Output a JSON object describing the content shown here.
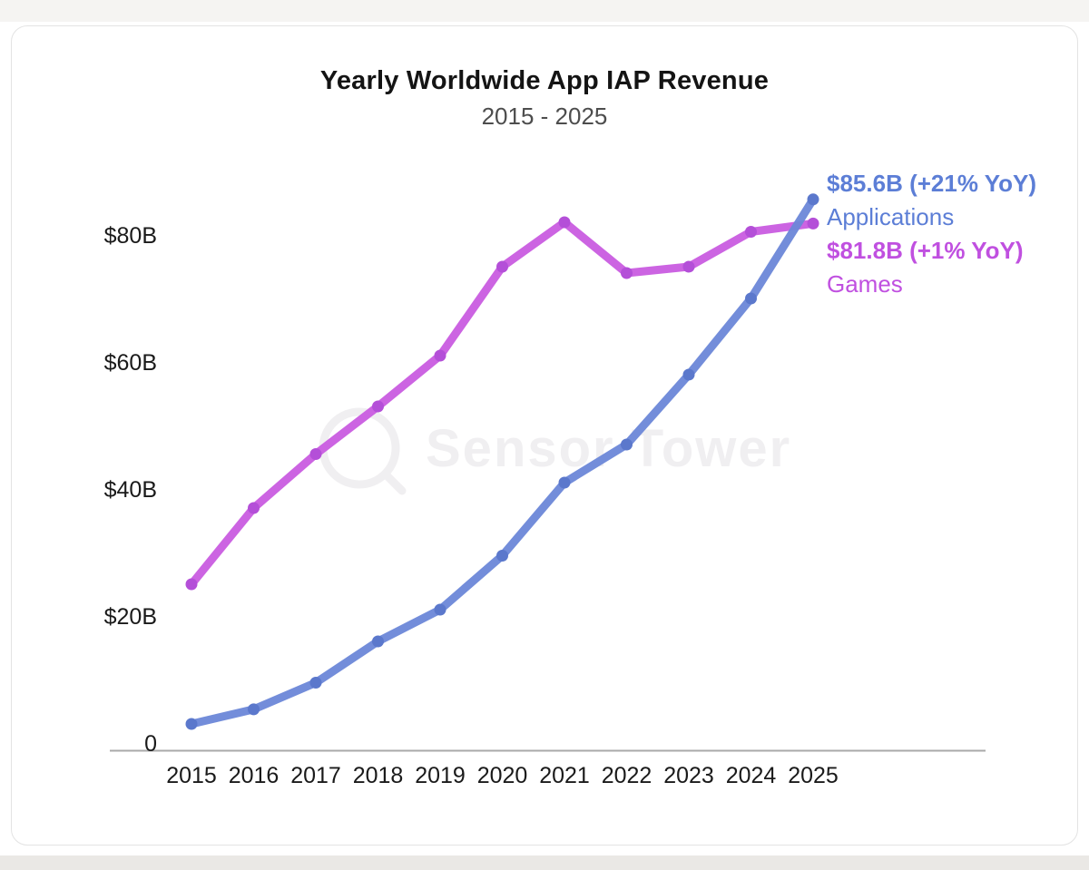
{
  "page": {
    "title": "Yearly Worldwide App IAP Revenue",
    "subtitle": "2015 - 2025",
    "watermark": "Sensor Tower"
  },
  "annotations": {
    "applications_value": "$85.6B (+21% YoY)",
    "applications_label": "Applications",
    "games_value": "$81.8B (+1% YoY)",
    "games_label": "Games"
  },
  "colors": {
    "applications_line": "#6b87d8",
    "applications_dot": "#5b78cc",
    "games_line": "#c95ce0",
    "games_dot": "#b44fd8",
    "axis": "#a9a9a9",
    "watermark": "#f0eff1"
  },
  "chart_data": {
    "type": "line",
    "title": "Yearly Worldwide App IAP Revenue",
    "subtitle": "2015 - 2025",
    "categories": [
      "2015",
      "2016",
      "2017",
      "2018",
      "2019",
      "2020",
      "2021",
      "2022",
      "2023",
      "2024",
      "2025"
    ],
    "series": [
      {
        "name": "Games",
        "color": "#c95ce0",
        "dot_color": "#b44fd8",
        "values": [
          25,
          37,
          45.5,
          53,
          61,
          75,
          82,
          74,
          75,
          80.5,
          81.8
        ],
        "final_label": "$81.8B (+1% YoY)"
      },
      {
        "name": "Applications",
        "color": "#6b87d8",
        "dot_color": "#5b78cc",
        "values": [
          3,
          5.3,
          9.5,
          16,
          21,
          29.5,
          41,
          47,
          58,
          70,
          85.6
        ],
        "final_label": "$85.6B (+21% YoY)"
      }
    ],
    "xlabel": "",
    "ylabel": "",
    "ylim": [
      0,
      90
    ],
    "y_ticks": [
      {
        "value": 0,
        "label": "0"
      },
      {
        "value": 20,
        "label": "$20B"
      },
      {
        "value": 40,
        "label": "$40B"
      },
      {
        "value": 60,
        "label": "$60B"
      },
      {
        "value": 80,
        "label": "$80B"
      }
    ],
    "grid": false,
    "legend_position": "right-annotations"
  }
}
